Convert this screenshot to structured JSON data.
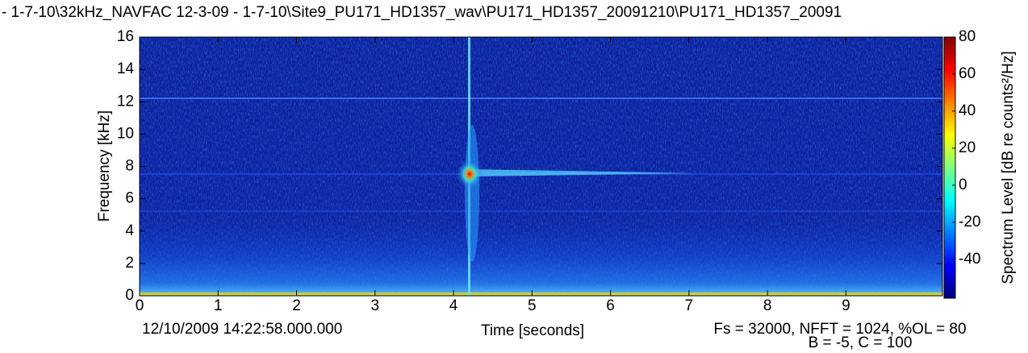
{
  "chart_data": {
    "type": "spectrogram",
    "title": "- 1-7-10\\32kHz_NAVFAC 12-3-09 - 1-7-10\\Site9_PU171_HD1357_wav\\PU171_HD1357_20091210\\PU171_HD1357_20091",
    "x_label": "Time [seconds]",
    "y_label": "Frequency [kHz]",
    "colorbar_label": "Spectrum Level [dB re counts²/Hz]",
    "start_time": "12/10/2009 14:22:58.000.000",
    "settings_line1": "Fs = 32000, NFFT = 1024, %OL = 80",
    "settings_line2": "B = -5, C = 100",
    "colormap": "jet",
    "xlim": [
      0,
      10.23
    ],
    "xticks": [
      0,
      1,
      2,
      3,
      4,
      5,
      6,
      7,
      8,
      9
    ],
    "ylim": [
      0,
      16
    ],
    "yticks": [
      0,
      2,
      4,
      6,
      8,
      10,
      12,
      14,
      16
    ],
    "clim": [
      -61,
      80
    ],
    "cticks": [
      -40,
      -20,
      0,
      20,
      40,
      60,
      80
    ]
  }
}
